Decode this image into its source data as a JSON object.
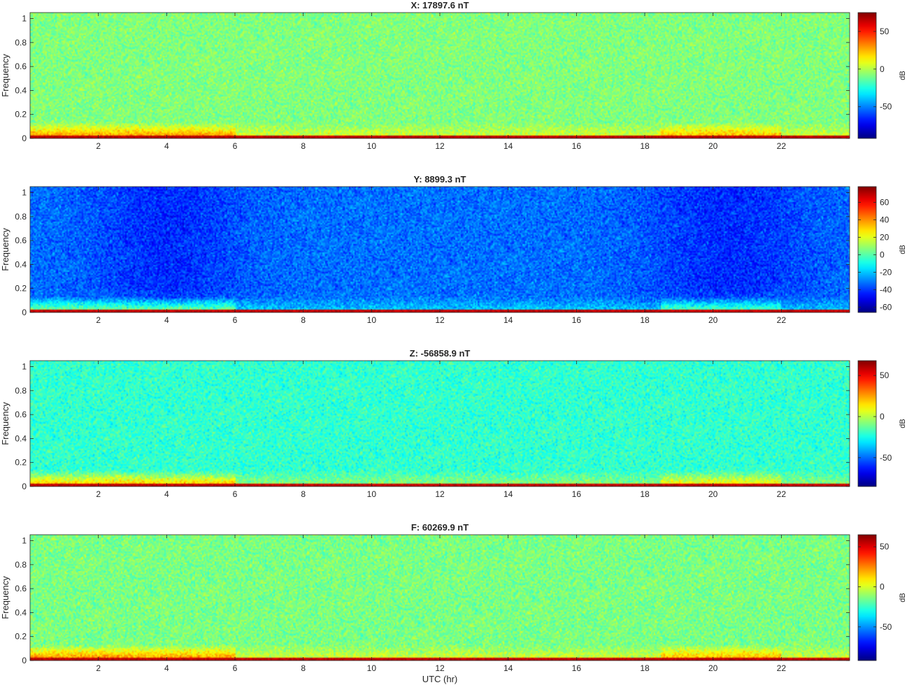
{
  "chart_data": [
    {
      "type": "heatmap",
      "title": "X: 17897.6 nT",
      "ylabel": "Frequency",
      "xlabel": "",
      "xlim": [
        0,
        24
      ],
      "ylim": [
        0,
        1.05
      ],
      "xticks": [
        "2",
        "4",
        "6",
        "8",
        "10",
        "12",
        "14",
        "16",
        "18",
        "20",
        "22"
      ],
      "yticks": [
        "0",
        "0.2",
        "0.4",
        "0.6",
        "0.8",
        "1"
      ],
      "colorbar": {
        "label": "dB",
        "range": [
          -92,
          75
        ],
        "ticks": [
          "50",
          "0",
          "-50"
        ]
      },
      "background_db": -8
    },
    {
      "type": "heatmap",
      "title": "Y: 8899.3 nT",
      "ylabel": "Frequency",
      "xlabel": "",
      "xlim": [
        0,
        24
      ],
      "ylim": [
        0,
        1.05
      ],
      "xticks": [
        "2",
        "4",
        "6",
        "8",
        "10",
        "12",
        "14",
        "16",
        "18",
        "20",
        "22"
      ],
      "yticks": [
        "0",
        "0.2",
        "0.4",
        "0.6",
        "0.8",
        "1"
      ],
      "colorbar": {
        "label": "dB",
        "range": [
          -66,
          78
        ],
        "ticks": [
          "60",
          "40",
          "20",
          "0",
          "-20",
          "-40",
          "-60"
        ]
      },
      "background_db": -32
    },
    {
      "type": "heatmap",
      "title": "Z: -56858.9 nT",
      "ylabel": "Frequency",
      "xlabel": "",
      "xlim": [
        0,
        24
      ],
      "ylim": [
        0,
        1.05
      ],
      "xticks": [
        "2",
        "4",
        "6",
        "8",
        "10",
        "12",
        "14",
        "16",
        "18",
        "20",
        "22"
      ],
      "yticks": [
        "0",
        "0.2",
        "0.4",
        "0.6",
        "0.8",
        "1"
      ],
      "colorbar": {
        "label": "dB",
        "range": [
          -85,
          68
        ],
        "ticks": [
          "50",
          "0",
          "-50"
        ]
      },
      "background_db": -20
    },
    {
      "type": "heatmap",
      "title": "F: 60269.9 nT",
      "ylabel": "Frequency",
      "xlabel": "UTC (hr)",
      "xlim": [
        0,
        24
      ],
      "ylim": [
        0,
        1.05
      ],
      "xticks": [
        "2",
        "4",
        "6",
        "8",
        "10",
        "12",
        "14",
        "16",
        "18",
        "20",
        "22"
      ],
      "yticks": [
        "0",
        "0.2",
        "0.4",
        "0.6",
        "0.8",
        "1"
      ],
      "colorbar": {
        "label": "dB",
        "range": [
          -92,
          65
        ],
        "ticks": [
          "50",
          "0",
          "-50"
        ]
      },
      "background_db": -14
    }
  ]
}
